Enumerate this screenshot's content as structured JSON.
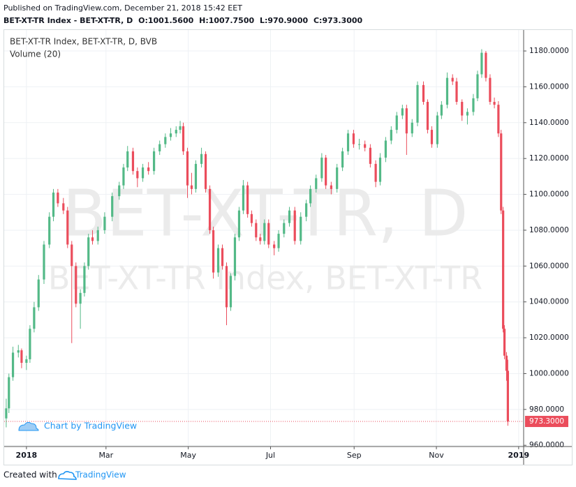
{
  "header": {
    "published": "Published on TradingView.com, December 21, 2018 15:42 EET",
    "symbol": "BET-XT-TR Index - BET-XT-TR, D",
    "ohlc": [
      "O:1001.5600",
      "H:1007.7500",
      "L:970.9000",
      "C:973.3000"
    ]
  },
  "chart_data": {
    "type": "candlestick",
    "legend": [
      "BET-XT-TR Index, BET-XT-TR, D, BVB",
      "Volume (20)"
    ],
    "watermark": [
      "BET-XT-TR, D",
      "BET-XT-TR Index, BET-XT-TR"
    ],
    "branding": "Chart by TradingView",
    "up_color": "#53b987",
    "down_color": "#eb4d5c",
    "grid": true,
    "xlim": [
      -16.5,
      368.7
    ],
    "ylim": [
      959.3,
      1191.7
    ],
    "xticks": [
      {
        "value": 0,
        "label": "2018"
      },
      {
        "value": 59,
        "label": "Mar"
      },
      {
        "value": 120,
        "label": "May"
      },
      {
        "value": 181,
        "label": "Jul"
      },
      {
        "value": 243,
        "label": "Sep"
      },
      {
        "value": 304,
        "label": "Nov"
      },
      {
        "value": 365,
        "label": "2019"
      }
    ],
    "yticks": [
      {
        "value": 960,
        "label": "960.0000"
      },
      {
        "value": 980,
        "label": "980.0000"
      },
      {
        "value": 1000,
        "label": "1000.0000"
      },
      {
        "value": 1020,
        "label": "1020.0000"
      },
      {
        "value": 1040,
        "label": "1040.0000"
      },
      {
        "value": 1060,
        "label": "1060.0000"
      },
      {
        "value": 1080,
        "label": "1080.0000"
      },
      {
        "value": 1100,
        "label": "1100.0000"
      },
      {
        "value": 1120,
        "label": "1120.0000"
      },
      {
        "value": 1140,
        "label": "1140.0000"
      },
      {
        "value": 1160,
        "label": "1160.0000"
      },
      {
        "value": 1180,
        "label": "1180.0000"
      }
    ],
    "last_price": {
      "value": 973.3,
      "label": "973.3000"
    },
    "candles": [
      [
        -15,
        975,
        986,
        970,
        980.6
      ],
      [
        -13,
        980.6,
        1000,
        978,
        998
      ],
      [
        -10,
        998,
        1015,
        996,
        1011.7
      ],
      [
        -6,
        1011.7,
        1016,
        1009,
        1013
      ],
      [
        -3.6,
        1013,
        1014,
        1003,
        1006
      ],
      [
        0,
        1006,
        1010,
        1002,
        1008
      ],
      [
        2.6,
        1008,
        1027,
        1006,
        1025
      ],
      [
        5.7,
        1025,
        1040,
        1023,
        1037
      ],
      [
        9,
        1037,
        1055,
        1035,
        1052.5
      ],
      [
        13,
        1052.5,
        1074,
        1050,
        1072
      ],
      [
        17,
        1072,
        1090,
        1070,
        1087.5
      ],
      [
        20,
        1087.5,
        1103,
        1085,
        1101
      ],
      [
        23.3,
        1101,
        1103,
        1093,
        1095
      ],
      [
        27.4,
        1095,
        1098,
        1089,
        1091
      ],
      [
        30.5,
        1091,
        1093,
        1070,
        1072
      ],
      [
        33.6,
        1072,
        1074,
        1017,
        1060
      ],
      [
        36.7,
        1060,
        1062,
        1037,
        1039
      ],
      [
        40,
        1039,
        1047,
        1025,
        1045
      ],
      [
        43,
        1045,
        1062,
        1043,
        1060
      ],
      [
        46,
        1060,
        1078,
        1058,
        1076
      ],
      [
        49,
        1076,
        1080,
        1072,
        1074
      ],
      [
        53,
        1074,
        1082,
        1072,
        1080
      ],
      [
        58,
        1080,
        1090,
        1078,
        1087.5
      ],
      [
        63.6,
        1087.5,
        1101,
        1085,
        1099
      ],
      [
        68.8,
        1099,
        1107,
        1097,
        1105
      ],
      [
        72,
        1105,
        1117,
        1103,
        1115
      ],
      [
        75,
        1115,
        1127,
        1113,
        1124
      ],
      [
        79,
        1124,
        1126,
        1111,
        1113
      ],
      [
        82.3,
        1113,
        1115,
        1104,
        1109
      ],
      [
        86.3,
        1109,
        1117,
        1107,
        1115
      ],
      [
        90.5,
        1115,
        1118,
        1111,
        1113
      ],
      [
        94.6,
        1113,
        1126,
        1111,
        1124
      ],
      [
        98.8,
        1124,
        1130,
        1122,
        1128
      ],
      [
        103,
        1128,
        1134,
        1126,
        1132
      ],
      [
        107,
        1132,
        1137,
        1130,
        1134
      ],
      [
        111,
        1134,
        1138,
        1132,
        1136
      ],
      [
        114,
        1136,
        1141,
        1134,
        1138
      ],
      [
        116.3,
        1138,
        1140,
        1122,
        1124
      ],
      [
        119.4,
        1124,
        1126,
        1098,
        1105
      ],
      [
        122.5,
        1105,
        1112,
        1100,
        1103
      ],
      [
        125.6,
        1103,
        1119,
        1101,
        1117
      ],
      [
        129.8,
        1117,
        1126,
        1115,
        1122.5
      ],
      [
        132.9,
        1122.5,
        1124,
        1101,
        1103
      ],
      [
        136,
        1103,
        1105,
        1078,
        1080
      ],
      [
        138.6,
        1080,
        1082,
        1053,
        1056.4
      ],
      [
        142.2,
        1056.4,
        1072,
        1054,
        1070
      ],
      [
        145.3,
        1070,
        1072,
        1058,
        1060
      ],
      [
        148.4,
        1060,
        1062,
        1027,
        1037
      ],
      [
        151.5,
        1037,
        1056,
        1035,
        1054.5
      ],
      [
        154.6,
        1054.5,
        1078,
        1052,
        1076
      ],
      [
        157.7,
        1076,
        1093,
        1074,
        1091
      ],
      [
        160.8,
        1091,
        1108,
        1089,
        1105
      ],
      [
        164,
        1105,
        1107,
        1087,
        1089
      ],
      [
        167,
        1089,
        1091,
        1082,
        1084
      ],
      [
        170.3,
        1084,
        1086,
        1074,
        1076
      ],
      [
        173.4,
        1076,
        1078,
        1072,
        1074
      ],
      [
        176.5,
        1074,
        1086,
        1072,
        1084
      ],
      [
        179.6,
        1084,
        1086,
        1070,
        1072
      ],
      [
        183.7,
        1072,
        1074,
        1066,
        1070
      ],
      [
        187,
        1070,
        1080,
        1068,
        1078
      ],
      [
        191,
        1078,
        1086,
        1076,
        1084
      ],
      [
        195,
        1084,
        1093,
        1082,
        1091
      ],
      [
        199,
        1091,
        1093,
        1072,
        1074
      ],
      [
        203.4,
        1074,
        1090,
        1072,
        1087.5
      ],
      [
        207.5,
        1087.5,
        1097,
        1085,
        1095
      ],
      [
        210.6,
        1095,
        1105,
        1093,
        1103
      ],
      [
        214.8,
        1103,
        1111,
        1101,
        1109
      ],
      [
        219,
        1109,
        1123,
        1107,
        1120.5
      ],
      [
        222,
        1120.5,
        1122,
        1103,
        1105
      ],
      [
        226,
        1105,
        1107,
        1100,
        1103
      ],
      [
        230.3,
        1103,
        1117,
        1101,
        1115
      ],
      [
        234.4,
        1115,
        1126,
        1113,
        1124
      ],
      [
        238.5,
        1124,
        1136,
        1122,
        1134
      ],
      [
        242.6,
        1134,
        1136,
        1126,
        1128
      ],
      [
        246.8,
        1128,
        1131,
        1125,
        1128
      ],
      [
        251,
        1128,
        1130,
        1124,
        1126
      ],
      [
        255,
        1126,
        1128,
        1115,
        1117
      ],
      [
        259,
        1117,
        1119,
        1104,
        1107
      ],
      [
        262.3,
        1107,
        1123,
        1105,
        1120.5
      ],
      [
        266.4,
        1120.5,
        1132,
        1118,
        1130
      ],
      [
        270.5,
        1130,
        1138,
        1128,
        1136
      ],
      [
        274.6,
        1136,
        1146,
        1134,
        1144
      ],
      [
        278.8,
        1144,
        1150,
        1142,
        1148
      ],
      [
        281.9,
        1148,
        1150,
        1122,
        1134
      ],
      [
        286,
        1134,
        1142,
        1132,
        1140
      ],
      [
        290,
        1140,
        1163,
        1138,
        1161
      ],
      [
        294.4,
        1161,
        1163,
        1150,
        1151.6
      ],
      [
        297.5,
        1151.6,
        1153,
        1134,
        1136
      ],
      [
        300.6,
        1136,
        1138,
        1126,
        1128
      ],
      [
        304.7,
        1128,
        1146,
        1126,
        1144
      ],
      [
        307.8,
        1144,
        1152,
        1142,
        1150
      ],
      [
        312,
        1150,
        1168,
        1148,
        1165
      ],
      [
        316,
        1165,
        1167,
        1161,
        1163
      ],
      [
        319,
        1163,
        1165,
        1150,
        1151.6
      ],
      [
        323,
        1151.6,
        1153,
        1141,
        1144
      ],
      [
        327,
        1144,
        1148,
        1139,
        1146
      ],
      [
        331.4,
        1146,
        1156,
        1144,
        1153.6
      ],
      [
        334.5,
        1153.6,
        1169,
        1152,
        1167
      ],
      [
        337.6,
        1167,
        1181,
        1165,
        1179
      ],
      [
        340.7,
        1179,
        1180,
        1163,
        1165
      ],
      [
        343.8,
        1165,
        1167,
        1150,
        1151.6
      ],
      [
        347,
        1151.6,
        1154,
        1148,
        1150
      ],
      [
        350,
        1150,
        1152,
        1132,
        1134
      ],
      [
        352,
        1134,
        1136,
        1089,
        1091
      ],
      [
        353.5,
        1091,
        1093,
        1023,
        1025
      ],
      [
        354.5,
        1025,
        1027,
        1008,
        1010
      ],
      [
        356,
        1010,
        1012,
        996,
        1001.56
      ],
      [
        357,
        1001.56,
        1007.75,
        970.9,
        973.3
      ]
    ]
  },
  "footer": {
    "created": "Created with",
    "brand": "TradingView"
  }
}
